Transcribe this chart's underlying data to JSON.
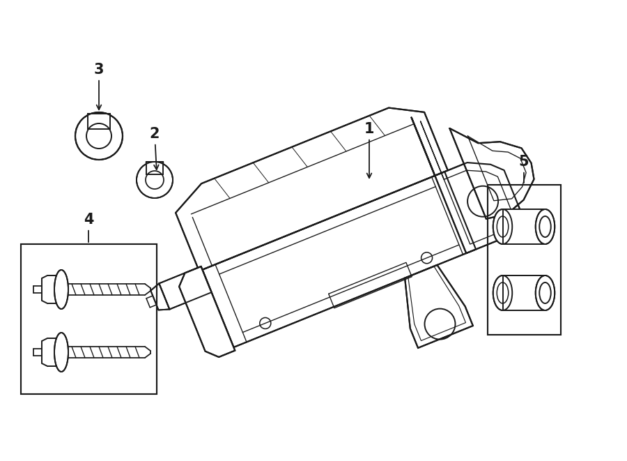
{
  "bg_color": "#ffffff",
  "line_color": "#1a1a1a",
  "line_width": 1.4,
  "fig_width": 9.0,
  "fig_height": 6.61,
  "dpi": 100
}
